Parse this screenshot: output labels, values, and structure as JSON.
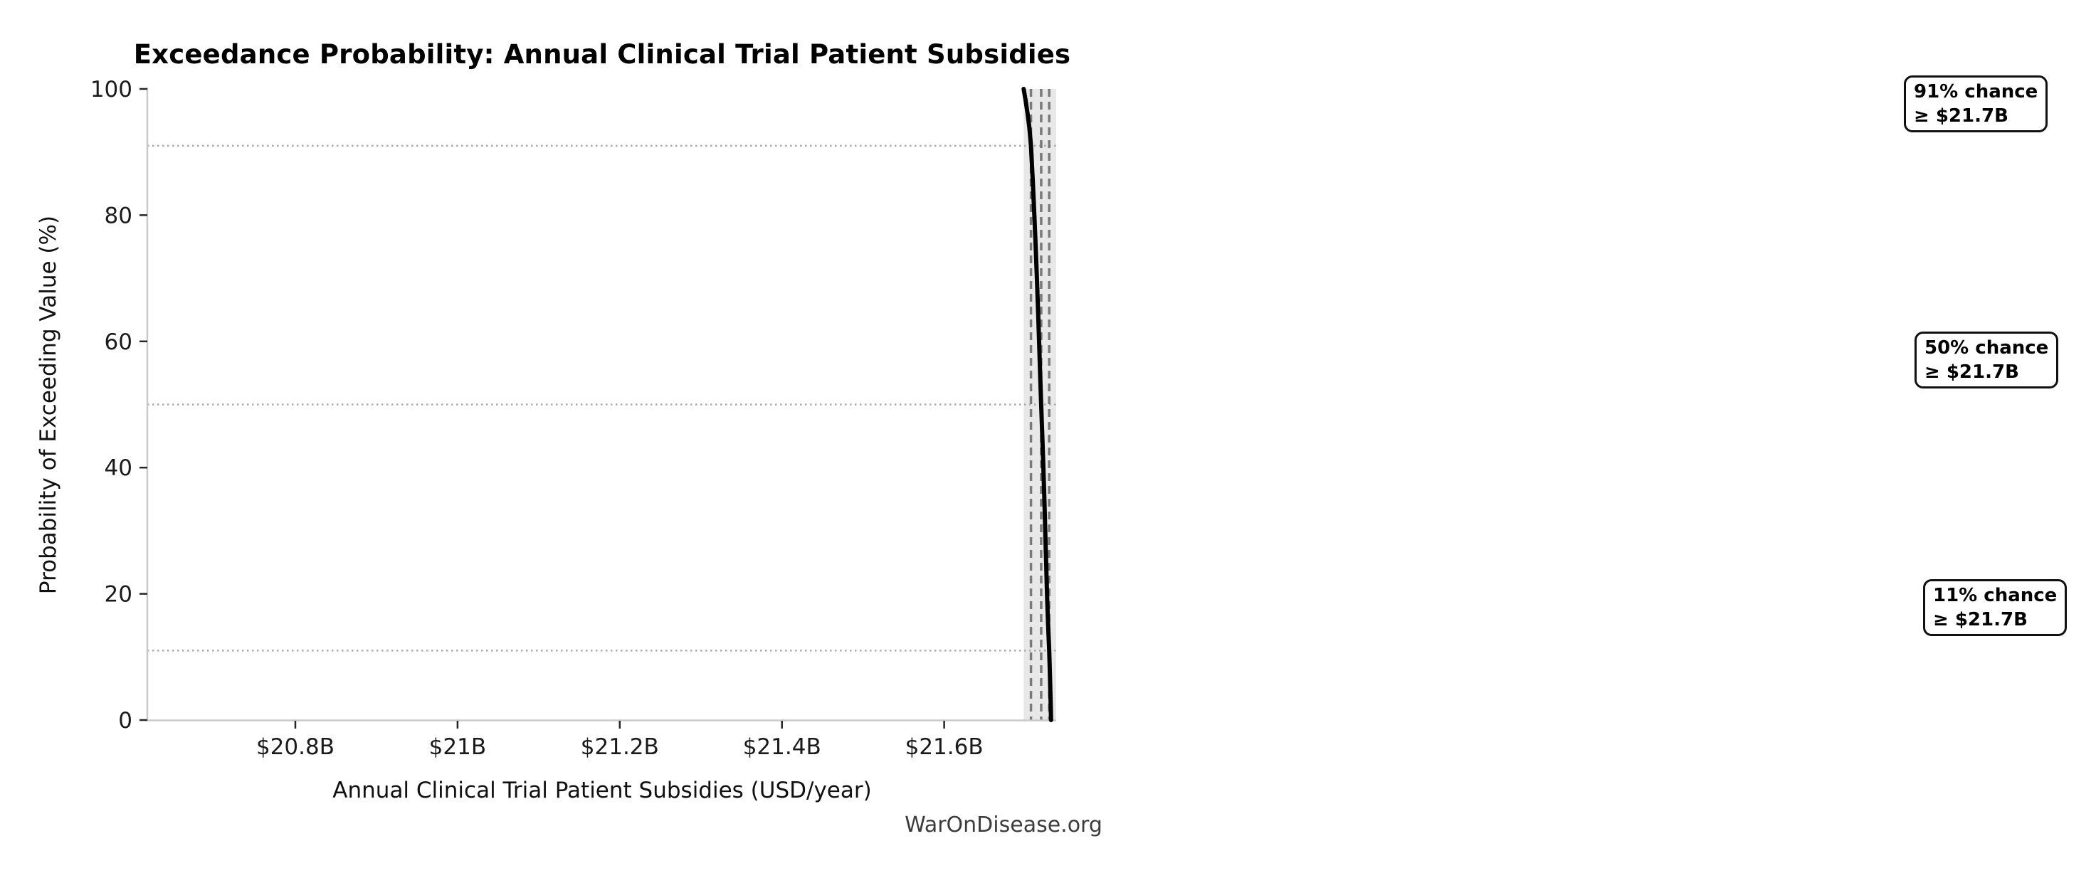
{
  "figure": {
    "watermark": "WarOnDisease.org",
    "background_color": "#ffffff"
  },
  "chart_data": {
    "type": "line",
    "title": "Exceedance Probability: Annual Clinical Trial Patient Subsidies",
    "xlabel": "Annual Clinical Trial Patient Subsidies (USD/year)",
    "ylabel": "Probability of Exceeding Value (%)",
    "xlim_billions_usd": [
      20.6175,
      21.7381
    ],
    "ylim_percent": [
      0,
      100
    ],
    "grid": "off",
    "legend": "none",
    "x_ticks": [
      {
        "value": 20.8,
        "label": "$20.8B"
      },
      {
        "value": 21.0,
        "label": "$21B"
      },
      {
        "value": 21.2,
        "label": "$21.2B"
      },
      {
        "value": 21.4,
        "label": "$21.4B"
      },
      {
        "value": 21.6,
        "label": "$21.6B"
      }
    ],
    "y_ticks": [
      {
        "value": 0,
        "label": "0"
      },
      {
        "value": 20,
        "label": "20"
      },
      {
        "value": 40,
        "label": "40"
      },
      {
        "value": 60,
        "label": "60"
      },
      {
        "value": 80,
        "label": "80"
      },
      {
        "value": 100,
        "label": "100"
      }
    ],
    "series": [
      {
        "name": "exceedance_curve",
        "color": "#000000",
        "stroke_width": 6,
        "points_value_billions_vs_exceedance_pct": [
          [
            21.698,
            100
          ],
          [
            21.7006,
            98
          ],
          [
            21.7029,
            96
          ],
          [
            21.7049,
            94
          ],
          [
            21.706,
            92.5
          ],
          [
            21.707,
            91
          ],
          [
            21.7094,
            85
          ],
          [
            21.7112,
            80
          ],
          [
            21.7128,
            75
          ],
          [
            21.7143,
            70
          ],
          [
            21.7157,
            65
          ],
          [
            21.717,
            60
          ],
          [
            21.7183,
            55
          ],
          [
            21.7196,
            50
          ],
          [
            21.721,
            45
          ],
          [
            21.7223,
            40
          ],
          [
            21.7235,
            35
          ],
          [
            21.7246,
            30
          ],
          [
            21.7257,
            25
          ],
          [
            21.7268,
            20
          ],
          [
            21.7282,
            15
          ],
          [
            21.7295,
            11
          ],
          [
            21.7302,
            8
          ],
          [
            21.7308,
            5
          ],
          [
            21.7313,
            2.5
          ],
          [
            21.7318,
            0
          ]
        ]
      }
    ],
    "shaded_band": {
      "from_billions": 21.698,
      "to_billions": 21.7381,
      "color": "#e8e8e8"
    },
    "percentile_vlines": {
      "style": "dashed",
      "color": "#7a7a7a",
      "values_billions": [
        21.707,
        21.7196,
        21.7295
      ]
    },
    "probability_hlines": {
      "style": "dotted",
      "color": "#ababab",
      "values_pct": [
        91,
        50,
        11
      ]
    },
    "annotations": [
      {
        "line1": "91% chance",
        "line2": "≥ $21.7B"
      },
      {
        "line1": "50% chance",
        "line2": "≥ $21.7B"
      },
      {
        "line1": "11% chance",
        "line2": "≥ $21.7B"
      }
    ],
    "axis_style": {
      "spine_color": "#c9c9c9",
      "tick_color": "#262626",
      "tick_label_color": "#1a1a1a",
      "tick_label_font_px": 31
    }
  }
}
